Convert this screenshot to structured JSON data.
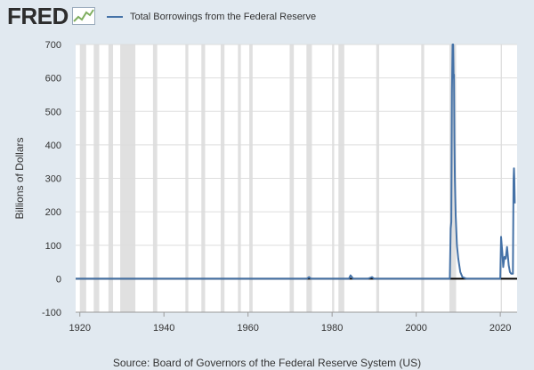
{
  "brand": {
    "logo_text": "FRED"
  },
  "legend": {
    "label": "Total Borrowings from the Federal Reserve",
    "color": "#4572a7"
  },
  "source": "Source: Board of Governors of the Federal Reserve System (US)",
  "colors": {
    "background": "#e1e9f0",
    "plot_bg": "#ffffff",
    "line": "#4572a7",
    "recession": "#e0e0e0",
    "grid": "#dddddd"
  },
  "chart_data": {
    "type": "line",
    "title": "",
    "xlabel": "",
    "ylabel": "Billions of Dollars",
    "xlim": [
      1919,
      2024
    ],
    "ylim": [
      -100,
      700
    ],
    "yticks": [
      -100,
      0,
      100,
      200,
      300,
      400,
      500,
      600,
      700
    ],
    "xticks": [
      1920,
      1940,
      1960,
      1980,
      2000,
      2020
    ],
    "grid": true,
    "legend_position": "top-left",
    "zero_line": true,
    "recessions": [
      [
        1920.0,
        1921.5
      ],
      [
        1923.3,
        1924.6
      ],
      [
        1926.8,
        1927.9
      ],
      [
        1929.6,
        1933.2
      ],
      [
        1937.4,
        1938.4
      ],
      [
        1945.1,
        1945.8
      ],
      [
        1948.9,
        1949.8
      ],
      [
        1953.5,
        1954.4
      ],
      [
        1957.6,
        1958.3
      ],
      [
        1960.3,
        1961.1
      ],
      [
        1969.9,
        1970.9
      ],
      [
        1973.9,
        1975.2
      ],
      [
        1980.0,
        1980.5
      ],
      [
        1981.5,
        1982.9
      ],
      [
        1990.5,
        1991.2
      ],
      [
        2001.2,
        2001.9
      ],
      [
        2007.9,
        2009.5
      ],
      [
        2020.1,
        2020.4
      ]
    ],
    "series": [
      {
        "name": "Total Borrowings from the Federal Reserve",
        "x": [
          1919,
          1974,
          1974.5,
          1975,
          1984,
          1984.4,
          1985,
          1988.5,
          1989.5,
          1990,
          2007.8,
          2008.0,
          2008.2,
          2008.35,
          2008.5,
          2008.65,
          2008.8,
          2008.9,
          2009.0,
          2009.1,
          2009.2,
          2009.4,
          2009.7,
          2010.0,
          2010.5,
          2011.0,
          2012,
          2020.0,
          2020.2,
          2020.5,
          2020.7,
          2021.0,
          2021.3,
          2021.6,
          2022.0,
          2022.3,
          2022.6,
          2023.0,
          2023.15,
          2023.25,
          2023.35,
          2023.45
        ],
        "y": [
          0,
          0,
          5,
          0,
          0,
          10,
          0,
          0,
          5,
          0,
          0,
          0,
          150,
          170,
          560,
          700,
          700,
          600,
          610,
          410,
          300,
          190,
          100,
          60,
          20,
          5,
          0,
          0,
          125,
          75,
          35,
          65,
          60,
          95,
          40,
          20,
          15,
          15,
          295,
          330,
          300,
          225
        ]
      }
    ]
  }
}
